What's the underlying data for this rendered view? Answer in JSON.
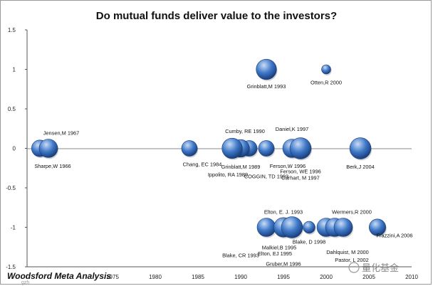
{
  "chart_data": {
    "type": "scatter",
    "title": "Do mutual funds deliver value to the investors?",
    "xlabel": "",
    "ylabel": "",
    "xlim": [
      1965,
      2010
    ],
    "ylim": [
      -1.5,
      1.5
    ],
    "x_ticks": [
      1975,
      1980,
      1985,
      1990,
      1995,
      2000,
      2005,
      2010
    ],
    "y_ticks": [
      1.5,
      1,
      0.5,
      0,
      -0.5,
      -1,
      -1.5
    ],
    "grid": false,
    "bubbles": [
      {
        "x": 1966.5,
        "y": 0,
        "size": 0.9
      },
      {
        "x": 1967.5,
        "y": 0,
        "size": 1.0
      },
      {
        "x": 1984,
        "y": 0,
        "size": 0.85
      },
      {
        "x": 1989,
        "y": 0,
        "size": 1.1
      },
      {
        "x": 1990,
        "y": 0,
        "size": 0.95
      },
      {
        "x": 1991,
        "y": 0,
        "size": 0.85
      },
      {
        "x": 1993,
        "y": 0,
        "size": 0.85
      },
      {
        "x": 1996,
        "y": 0,
        "size": 1.0
      },
      {
        "x": 1997,
        "y": 0,
        "size": 1.15
      },
      {
        "x": 2004,
        "y": 0,
        "size": 1.15
      },
      {
        "x": 1993,
        "y": 1,
        "size": 1.1
      },
      {
        "x": 2000,
        "y": 1,
        "size": 0.5
      },
      {
        "x": 1993,
        "y": -1,
        "size": 1.0
      },
      {
        "x": 1995,
        "y": -1,
        "size": 1.05
      },
      {
        "x": 1996,
        "y": -1,
        "size": 1.15
      },
      {
        "x": 1998,
        "y": -1,
        "size": 0.65
      },
      {
        "x": 2000,
        "y": -1,
        "size": 1.0
      },
      {
        "x": 2001,
        "y": -1,
        "size": 1.0
      },
      {
        "x": 2002,
        "y": -1,
        "size": 1.0
      },
      {
        "x": 2006,
        "y": -1,
        "size": 0.9
      }
    ],
    "annotations": [
      {
        "text": "Jensen,M 1967",
        "x": 1969,
        "y": 0.2
      },
      {
        "text": "Sharpe,W 1966",
        "x": 1968,
        "y": -0.22
      },
      {
        "text": "Chang, EC 1984",
        "x": 1985.5,
        "y": -0.2
      },
      {
        "text": "Cumby, RE 1990",
        "x": 1990.5,
        "y": 0.22
      },
      {
        "text": "Grinblatt,M 1989",
        "x": 1990,
        "y": -0.23
      },
      {
        "text": "Ippolito, RA 1989",
        "x": 1988.5,
        "y": -0.33
      },
      {
        "text": "COGGIN, TD 1993",
        "x": 1993,
        "y": -0.35
      },
      {
        "text": "Daniel,K 1997",
        "x": 1996,
        "y": 0.25
      },
      {
        "text": "Ferson,W 1996",
        "x": 1995.5,
        "y": -0.22
      },
      {
        "text": "Ferson, WE 1996",
        "x": 1997,
        "y": -0.29
      },
      {
        "text": "Carhart, M 1997",
        "x": 1997,
        "y": -0.37
      },
      {
        "text": "Berk,J 2004",
        "x": 2004,
        "y": -0.23
      },
      {
        "text": "Grinblatt,M 1993",
        "x": 1993,
        "y": 0.79
      },
      {
        "text": "Otten,R 2000",
        "x": 2000,
        "y": 0.84
      },
      {
        "text": "Elton, E. J. 1993",
        "x": 1995,
        "y": -0.8
      },
      {
        "text": "Wermers,R 2000",
        "x": 2003,
        "y": -0.8
      },
      {
        "text": "Blake, D 1998",
        "x": 1998,
        "y": -1.18
      },
      {
        "text": "Malkiel,B 1995",
        "x": 1994.5,
        "y": -1.25
      },
      {
        "text": "Blake, CR 1993",
        "x": 1990,
        "y": -1.35
      },
      {
        "text": "Elton, EJ 1995",
        "x": 1994,
        "y": -1.33
      },
      {
        "text": "Dahlquist, M 2000",
        "x": 2002.5,
        "y": -1.31
      },
      {
        "text": "Pastor, L 2002",
        "x": 2003,
        "y": -1.41
      },
      {
        "text": "Gruber,M 1996",
        "x": 1995,
        "y": -1.46
      },
      {
        "text": "Frazzini,A 2006",
        "x": 2008,
        "y": -1.1
      }
    ],
    "bubble_color": "#3f78c8",
    "bubble_dark": "#1a3f7c",
    "bubble_light": "#c8dcf5"
  },
  "footer": {
    "label": "Woodsford Meta Analysis"
  },
  "watermark": {
    "text": "量化基金",
    "small": "gzh"
  }
}
